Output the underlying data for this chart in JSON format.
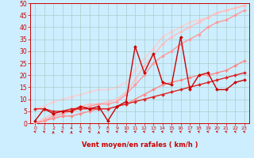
{
  "xlabel": "Vent moyen/en rafales ( km/h )",
  "bg_color": "#cceeff",
  "grid_color": "#aacccc",
  "xlim": [
    -0.5,
    23.5
  ],
  "ylim": [
    0,
    50
  ],
  "yticks": [
    0,
    5,
    10,
    15,
    20,
    25,
    30,
    35,
    40,
    45,
    50
  ],
  "xticks": [
    0,
    1,
    2,
    3,
    4,
    5,
    6,
    7,
    8,
    9,
    10,
    11,
    12,
    13,
    14,
    15,
    16,
    17,
    18,
    19,
    20,
    21,
    22,
    23
  ],
  "series": [
    {
      "x": [
        0,
        1,
        2,
        3,
        4,
        5,
        6,
        7,
        8,
        9,
        10,
        11,
        12,
        13,
        14,
        15,
        16,
        17,
        18,
        19,
        20,
        21,
        22,
        23
      ],
      "y": [
        1,
        6,
        4,
        5,
        5,
        7,
        6,
        7,
        1,
        7,
        9,
        32,
        21,
        29,
        17,
        16,
        36,
        14,
        20,
        21,
        14,
        14,
        17,
        18
      ],
      "color": "#cc0000",
      "lw": 1.0,
      "marker": "D",
      "ms": 2.0,
      "zorder": 5
    },
    {
      "x": [
        0,
        1,
        2,
        3,
        4,
        5,
        6,
        7,
        8,
        9,
        10,
        11,
        12,
        13,
        14,
        15,
        16,
        17,
        18,
        19,
        20,
        21,
        22,
        23
      ],
      "y": [
        6,
        6,
        5,
        5,
        6,
        6,
        6,
        6,
        6,
        7,
        8,
        9,
        10,
        11,
        12,
        13,
        14,
        15,
        16,
        17,
        18,
        19,
        20,
        21
      ],
      "color": "#dd2222",
      "lw": 1.0,
      "marker": "D",
      "ms": 2.0,
      "zorder": 4
    },
    {
      "x": [
        0,
        1,
        2,
        3,
        4,
        5,
        6,
        7,
        8,
        9,
        10,
        11,
        12,
        13,
        14,
        15,
        16,
        17,
        18,
        19,
        20,
        21,
        22,
        23
      ],
      "y": [
        0,
        1,
        2,
        3,
        3,
        4,
        5,
        6,
        6,
        7,
        8,
        10,
        12,
        14,
        16,
        17,
        18,
        19,
        20,
        20,
        21,
        22,
        24,
        26
      ],
      "color": "#ff8888",
      "lw": 1.0,
      "marker": "D",
      "ms": 2.0,
      "zorder": 3
    },
    {
      "x": [
        0,
        1,
        2,
        3,
        4,
        5,
        6,
        7,
        8,
        9,
        10,
        11,
        12,
        13,
        14,
        15,
        16,
        17,
        18,
        19,
        20,
        21,
        22,
        23
      ],
      "y": [
        0,
        1,
        3,
        4,
        5,
        6,
        7,
        8,
        8,
        9,
        12,
        16,
        20,
        25,
        28,
        30,
        33,
        35,
        37,
        40,
        42,
        43,
        45,
        47
      ],
      "color": "#ff9999",
      "lw": 1.0,
      "marker": "D",
      "ms": 2.0,
      "zorder": 3
    },
    {
      "x": [
        0,
        1,
        2,
        3,
        4,
        5,
        6,
        7,
        8,
        9,
        10,
        11,
        12,
        13,
        14,
        15,
        16,
        17,
        18,
        19,
        20,
        21,
        22,
        23
      ],
      "y": [
        0,
        2,
        4,
        5,
        6,
        7,
        8,
        8,
        9,
        10,
        13,
        18,
        24,
        28,
        33,
        36,
        38,
        40,
        42,
        44,
        46,
        47,
        48,
        49
      ],
      "color": "#ffbbbb",
      "lw": 1.0,
      "marker": "D",
      "ms": 2.0,
      "zorder": 2
    },
    {
      "x": [
        0,
        1,
        2,
        3,
        4,
        5,
        6,
        7,
        8,
        9,
        10,
        11,
        12,
        13,
        14,
        15,
        16,
        17,
        18,
        19,
        20,
        21,
        22,
        23
      ],
      "y": [
        6,
        7,
        9,
        10,
        11,
        12,
        13,
        14,
        14,
        15,
        17,
        22,
        27,
        31,
        36,
        38,
        40,
        42,
        43,
        44,
        46,
        47,
        48,
        49
      ],
      "color": "#ffcccc",
      "lw": 1.0,
      "marker": "D",
      "ms": 2.0,
      "zorder": 1
    }
  ],
  "arrow_angles_deg": [
    135,
    135,
    90,
    135,
    90,
    135,
    135,
    90,
    135,
    135,
    135,
    135,
    135,
    135,
    135,
    135,
    135,
    135,
    135,
    135,
    135,
    135,
    135,
    135
  ]
}
